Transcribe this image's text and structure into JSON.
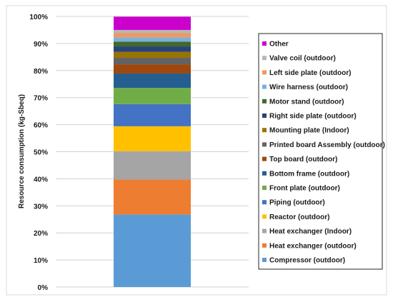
{
  "chart_data": {
    "type": "bar",
    "stacked": true,
    "categories": [
      ""
    ],
    "ylabel": "Resource  consumption (kg-Sbeq)",
    "ylim": [
      0,
      100
    ],
    "y_ticks": [
      "0%",
      "10%",
      "20%",
      "30%",
      "40%",
      "50%",
      "60%",
      "70%",
      "80%",
      "90%",
      "100%"
    ],
    "grid": true,
    "legend_position": "right",
    "series": [
      {
        "name": "Compressor (outdoor)",
        "values": [
          26.8
        ],
        "color": "#5b9bd5"
      },
      {
        "name": "Heat exchanger (outdoor)",
        "values": [
          12.9
        ],
        "color": "#ed7d31"
      },
      {
        "name": "Heat exchanger (Indoor)",
        "values": [
          10.5
        ],
        "color": "#a5a5a5"
      },
      {
        "name": "Reactor (outdoor)",
        "values": [
          9.2
        ],
        "color": "#ffc000"
      },
      {
        "name": "Piping (outdoor)",
        "values": [
          8.2
        ],
        "color": "#4472c4"
      },
      {
        "name": "Front plate (outdoor)",
        "values": [
          6.0
        ],
        "color": "#70ad47"
      },
      {
        "name": "Bottom frame (outdoor)",
        "values": [
          5.3
        ],
        "color": "#255e91"
      },
      {
        "name": "Top board (outdoor)",
        "values": [
          3.4
        ],
        "color": "#9e480e"
      },
      {
        "name": "Printed board Assembly (outdoor)",
        "values": [
          2.4
        ],
        "color": "#636363"
      },
      {
        "name": "Mounting plate (Indoor)",
        "values": [
          2.2
        ],
        "color": "#997300"
      },
      {
        "name": "Right side plate (outdoor)",
        "values": [
          2.0
        ],
        "color": "#264478"
      },
      {
        "name": "Motor stand (outdoor)",
        "values": [
          1.8
        ],
        "color": "#43682b"
      },
      {
        "name": "Wire harness (outdoor)",
        "values": [
          1.6
        ],
        "color": "#7cafdd"
      },
      {
        "name": "Left side plate (outdoor)",
        "values": [
          1.5
        ],
        "color": "#f1975a"
      },
      {
        "name": "Valve coil (outdoor)",
        "values": [
          1.2
        ],
        "color": "#b7b7b7"
      },
      {
        "name": "Other",
        "values": [
          4.9
        ],
        "color": "#cc00cc"
      }
    ]
  }
}
